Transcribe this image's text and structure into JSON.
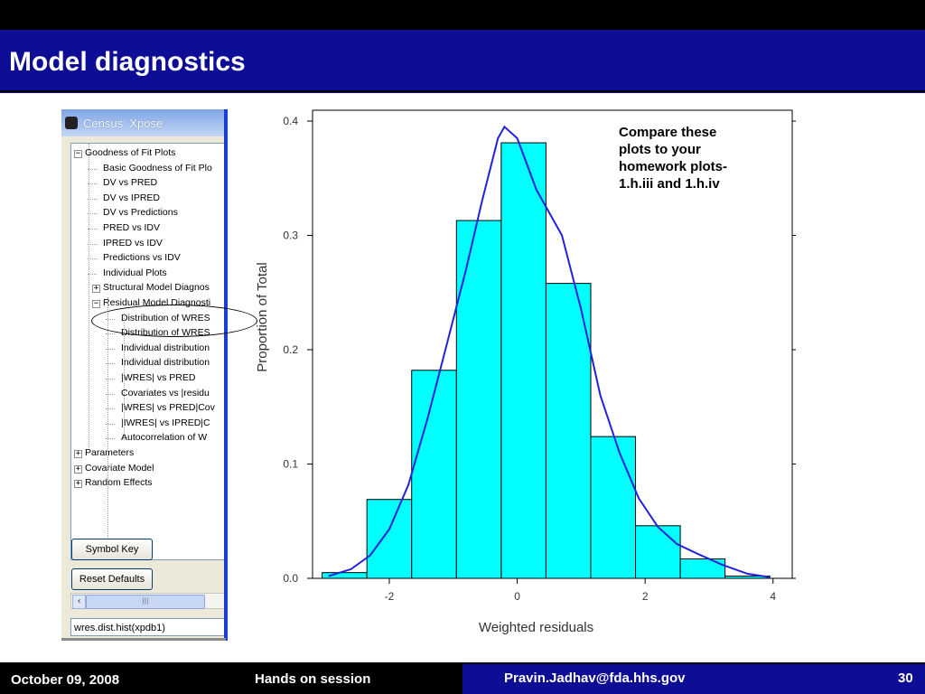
{
  "slide": {
    "title": "Model diagnostics",
    "footer": {
      "date": "October 09, 2008",
      "session": "Hands on session",
      "email": "Pravin.Jadhav@fda.hhs.gov",
      "page": "30"
    },
    "note_lines": [
      "Compare these",
      "plots to your",
      "homework plots-",
      "1.h.iii and 1.h.iv"
    ]
  },
  "window": {
    "title": "Census: Xpose",
    "tree": [
      {
        "label": "Goodness of Fit Plots",
        "level": 0,
        "toggle": "⊟"
      },
      {
        "label": "Basic Goodness of Fit Plo",
        "level": 1
      },
      {
        "label": "DV vs PRED",
        "level": 1
      },
      {
        "label": "DV vs IPRED",
        "level": 1
      },
      {
        "label": "DV vs Predictions",
        "level": 1
      },
      {
        "label": "PRED vs IDV",
        "level": 1
      },
      {
        "label": "IPRED vs IDV",
        "level": 1
      },
      {
        "label": "Predictions vs IDV",
        "level": 1
      },
      {
        "label": "Individual Plots",
        "level": 1
      },
      {
        "label": "Structural Model Diagnos",
        "level": 1,
        "toggle": "⊞"
      },
      {
        "label": "Residual Model Diagnosti",
        "level": 1,
        "toggle": "⊟"
      },
      {
        "label": "Distribution of WRES",
        "level": 2
      },
      {
        "label": "Distribution of WRES",
        "level": 2
      },
      {
        "label": "Individual distribution",
        "level": 2
      },
      {
        "label": "Individual distribution",
        "level": 2
      },
      {
        "label": "|WRES| vs PRED",
        "level": 2
      },
      {
        "label": "Covariates vs |residu",
        "level": 2
      },
      {
        "label": "|WRES| vs PRED|Cov",
        "level": 2
      },
      {
        "label": "|IWRES| vs IPRED|C",
        "level": 2
      },
      {
        "label": "Autocorrelation of W",
        "level": 2
      },
      {
        "label": "Parameters",
        "level": 0,
        "toggle": "⊞"
      },
      {
        "label": "Covariate Model",
        "level": 0,
        "toggle": "⊞"
      },
      {
        "label": "Random Effects",
        "level": 0,
        "toggle": "⊞"
      }
    ],
    "command": "wres.dist.hist(xpdb1)",
    "buttons": {
      "symbol_key": "Symbol Key",
      "reset_defaults": "Reset Defaults"
    }
  },
  "colors": {
    "header_bg": "#0d0d96",
    "bar_fill": "#00ffff",
    "density_line": "#2222dd"
  },
  "chart_data": {
    "type": "bar",
    "xlabel": "Weighted residuals",
    "ylabel": "Proportion of Total",
    "xlim": [
      -3.2,
      4.3
    ],
    "ylim": [
      0,
      0.4
    ],
    "xticks": [
      "-2",
      "0",
      "2",
      "4"
    ],
    "yticks": [
      "0.0",
      "0.1",
      "0.2",
      "0.3",
      "0.4"
    ],
    "bins": [
      {
        "x0": -3.05,
        "x1": -2.35,
        "value": 0.005
      },
      {
        "x0": -2.35,
        "x1": -1.65,
        "value": 0.069
      },
      {
        "x0": -1.65,
        "x1": -0.95,
        "value": 0.182
      },
      {
        "x0": -0.95,
        "x1": -0.25,
        "value": 0.313
      },
      {
        "x0": -0.25,
        "x1": 0.45,
        "value": 0.381
      },
      {
        "x0": 0.45,
        "x1": 1.15,
        "value": 0.258
      },
      {
        "x0": 1.15,
        "x1": 1.85,
        "value": 0.124
      },
      {
        "x0": 1.85,
        "x1": 2.55,
        "value": 0.046
      },
      {
        "x0": 2.55,
        "x1": 3.25,
        "value": 0.017
      },
      {
        "x0": 3.25,
        "x1": 3.95,
        "value": 0.002
      }
    ],
    "density": [
      [
        -2.95,
        0.002
      ],
      [
        -2.6,
        0.008
      ],
      [
        -2.3,
        0.02
      ],
      [
        -2.0,
        0.043
      ],
      [
        -1.7,
        0.082
      ],
      [
        -1.4,
        0.14
      ],
      [
        -1.1,
        0.205
      ],
      [
        -0.8,
        0.27
      ],
      [
        -0.55,
        0.33
      ],
      [
        -0.3,
        0.385
      ],
      [
        -0.2,
        0.395
      ],
      [
        0.0,
        0.385
      ],
      [
        0.3,
        0.34
      ],
      [
        0.7,
        0.3
      ],
      [
        1.0,
        0.235
      ],
      [
        1.3,
        0.16
      ],
      [
        1.6,
        0.11
      ],
      [
        1.9,
        0.07
      ],
      [
        2.2,
        0.045
      ],
      [
        2.5,
        0.03
      ],
      [
        2.8,
        0.022
      ],
      [
        3.2,
        0.012
      ],
      [
        3.6,
        0.004
      ],
      [
        3.95,
        0.001
      ]
    ]
  }
}
